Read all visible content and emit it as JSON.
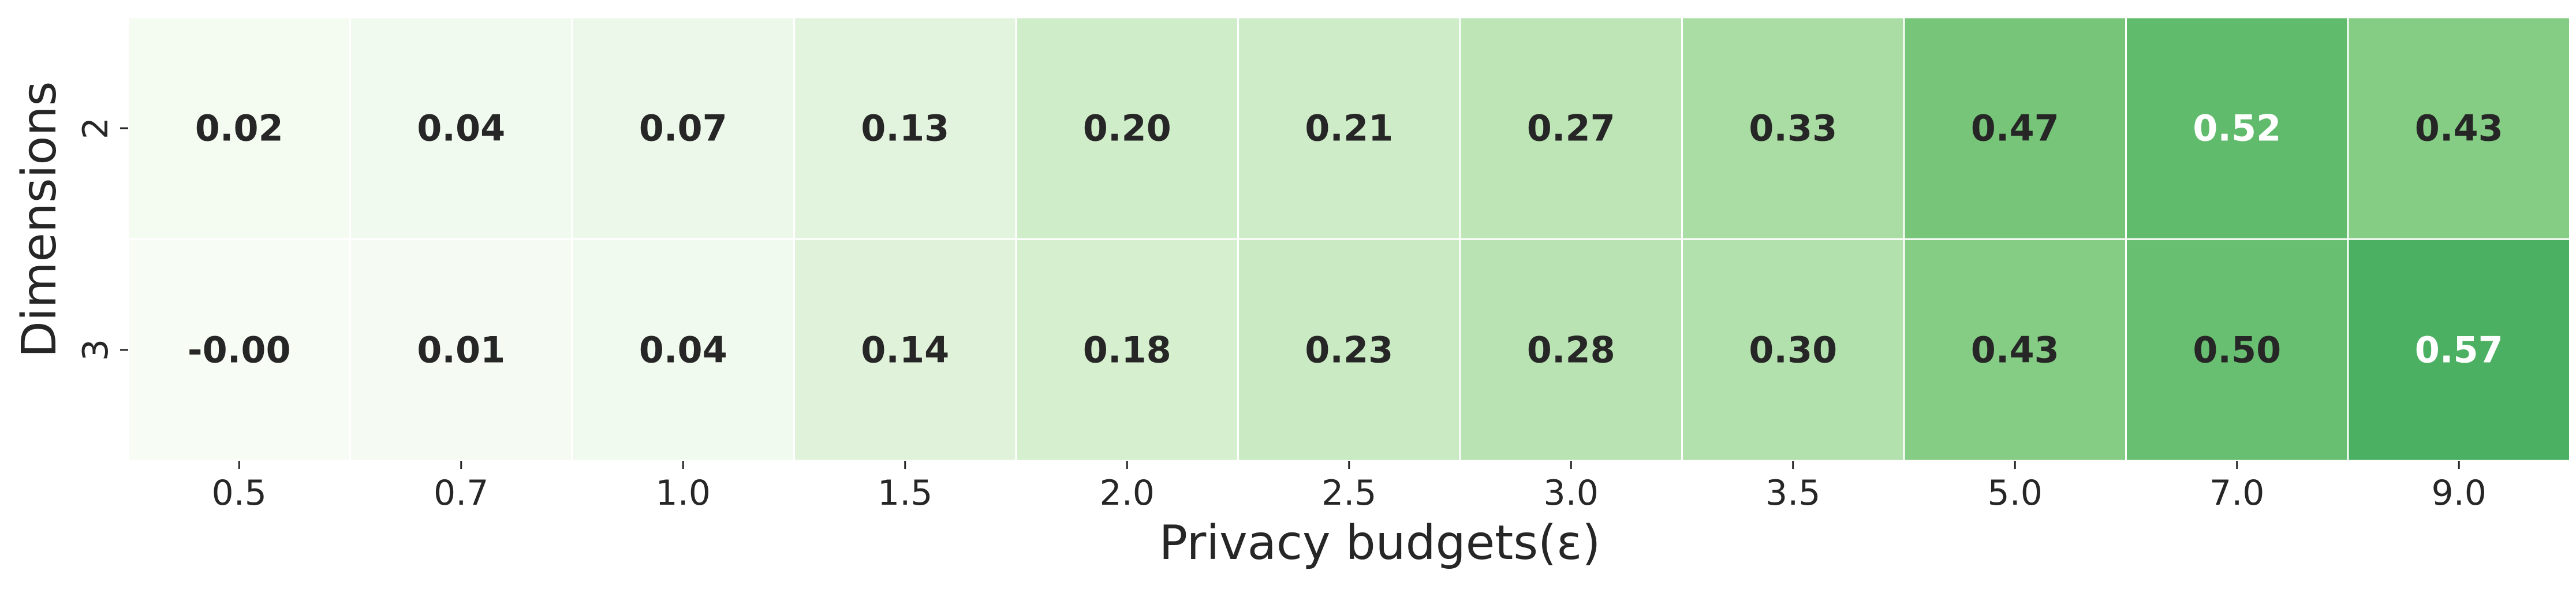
{
  "chart_data": {
    "type": "heatmap",
    "xlabel": "Privacy budgets(ε)",
    "ylabel": "Dimensions",
    "x_categories": [
      "0.5",
      "0.7",
      "1.0",
      "1.5",
      "2.0",
      "2.5",
      "3.0",
      "3.5",
      "5.0",
      "7.0",
      "9.0"
    ],
    "y_categories": [
      "2",
      "3"
    ],
    "values": [
      [
        0.02,
        0.04,
        0.07,
        0.13,
        0.2,
        0.21,
        0.27,
        0.33,
        0.47,
        0.52,
        0.43
      ],
      [
        -0.0,
        0.01,
        0.04,
        0.14,
        0.18,
        0.23,
        0.28,
        0.3,
        0.43,
        0.5,
        0.57
      ]
    ],
    "value_labels": [
      [
        "0.02",
        "0.04",
        "0.07",
        "0.13",
        "0.20",
        "0.21",
        "0.27",
        "0.33",
        "0.47",
        "0.52",
        "0.43"
      ],
      [
        "-0.00",
        "0.01",
        "0.04",
        "0.14",
        "0.18",
        "0.23",
        "0.28",
        "0.30",
        "0.43",
        "0.50",
        "0.57"
      ]
    ],
    "colormap": "Greens",
    "colorbar": false,
    "grid": false,
    "cell_border_color": "#ffffff",
    "colors": {
      "low": "#f7fcf5",
      "high": "#5cb867",
      "text_dark": "#262626",
      "text_light": "#ffffff"
    }
  }
}
